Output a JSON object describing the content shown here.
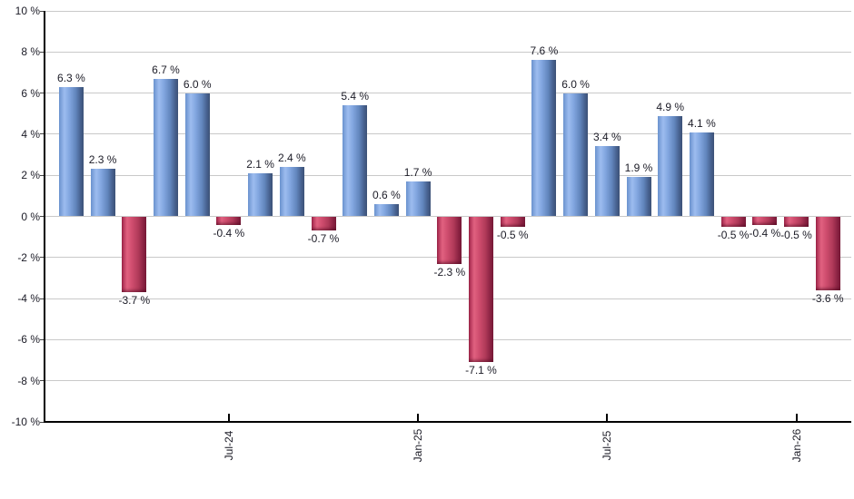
{
  "chart_data": {
    "type": "bar",
    "title": "",
    "unit": "%",
    "grid": true,
    "legend": false,
    "ylim": [
      -10,
      10
    ],
    "values": [
      6.3,
      2.3,
      -3.7,
      6.7,
      6.0,
      -0.4,
      2.1,
      2.4,
      -0.7,
      5.4,
      0.6,
      1.7,
      -2.3,
      -7.1,
      -0.5,
      7.6,
      6.0,
      3.4,
      1.9,
      4.9,
      4.1,
      -0.5,
      -0.4,
      -0.5,
      -3.6
    ],
    "value_labels": [
      "6.3 %",
      "2.3 %",
      "-3.7 %",
      "6.7 %",
      "6.0 %",
      "-0.4 %",
      "2.1 %",
      "2.4 %",
      "-0.7 %",
      "5.4 %",
      "0.6 %",
      "1.7 %",
      "-2.3 %",
      "-7.1 %",
      "-0.5 %",
      "7.6 %",
      "6.0 %",
      "3.4 %",
      "1.9 %",
      "4.9 %",
      "4.1 %",
      "-0.5 %",
      "-0.4 %",
      "-0.5 %",
      "-3.6 %"
    ],
    "x_ticks": [
      {
        "index": 5,
        "label": "Jul-24"
      },
      {
        "index": 11,
        "label": "Jan-25"
      },
      {
        "index": 17,
        "label": "Jul-25"
      },
      {
        "index": 23,
        "label": "Jan-26"
      }
    ],
    "y_ticks": [
      {
        "value": 10,
        "label": "10 %"
      },
      {
        "value": 8,
        "label": "8 %"
      },
      {
        "value": 6,
        "label": "6 %"
      },
      {
        "value": 4,
        "label": "4 %"
      },
      {
        "value": 2,
        "label": "2 %"
      },
      {
        "value": 0,
        "label": "0 %"
      },
      {
        "value": -2,
        "label": "-2 %"
      },
      {
        "value": -4,
        "label": "-4 %"
      },
      {
        "value": -6,
        "label": "-6 %"
      },
      {
        "value": -8,
        "label": "-8 %"
      },
      {
        "value": -10,
        "label": "-10 %"
      }
    ],
    "colors": {
      "background": "#ffffff",
      "gridline": "#c9c9c9",
      "axis": "#000000",
      "label_text": "#1b1b26",
      "positive_base": "#7fa3dd",
      "negative_base": "#c94766",
      "positive_gradient": [
        "#6a92ce 0%",
        "#9dbcef 22%",
        "#82a6e0 42%",
        "#6286bd 68%",
        "#46608e 88%",
        "#3c5276 100%"
      ],
      "negative_gradient": [
        "#a3274c 0%",
        "#e16180 22%",
        "#cf4d6e 42%",
        "#b03a59 68%",
        "#8a2242 88%",
        "#7c1c3a 100%"
      ]
    }
  }
}
